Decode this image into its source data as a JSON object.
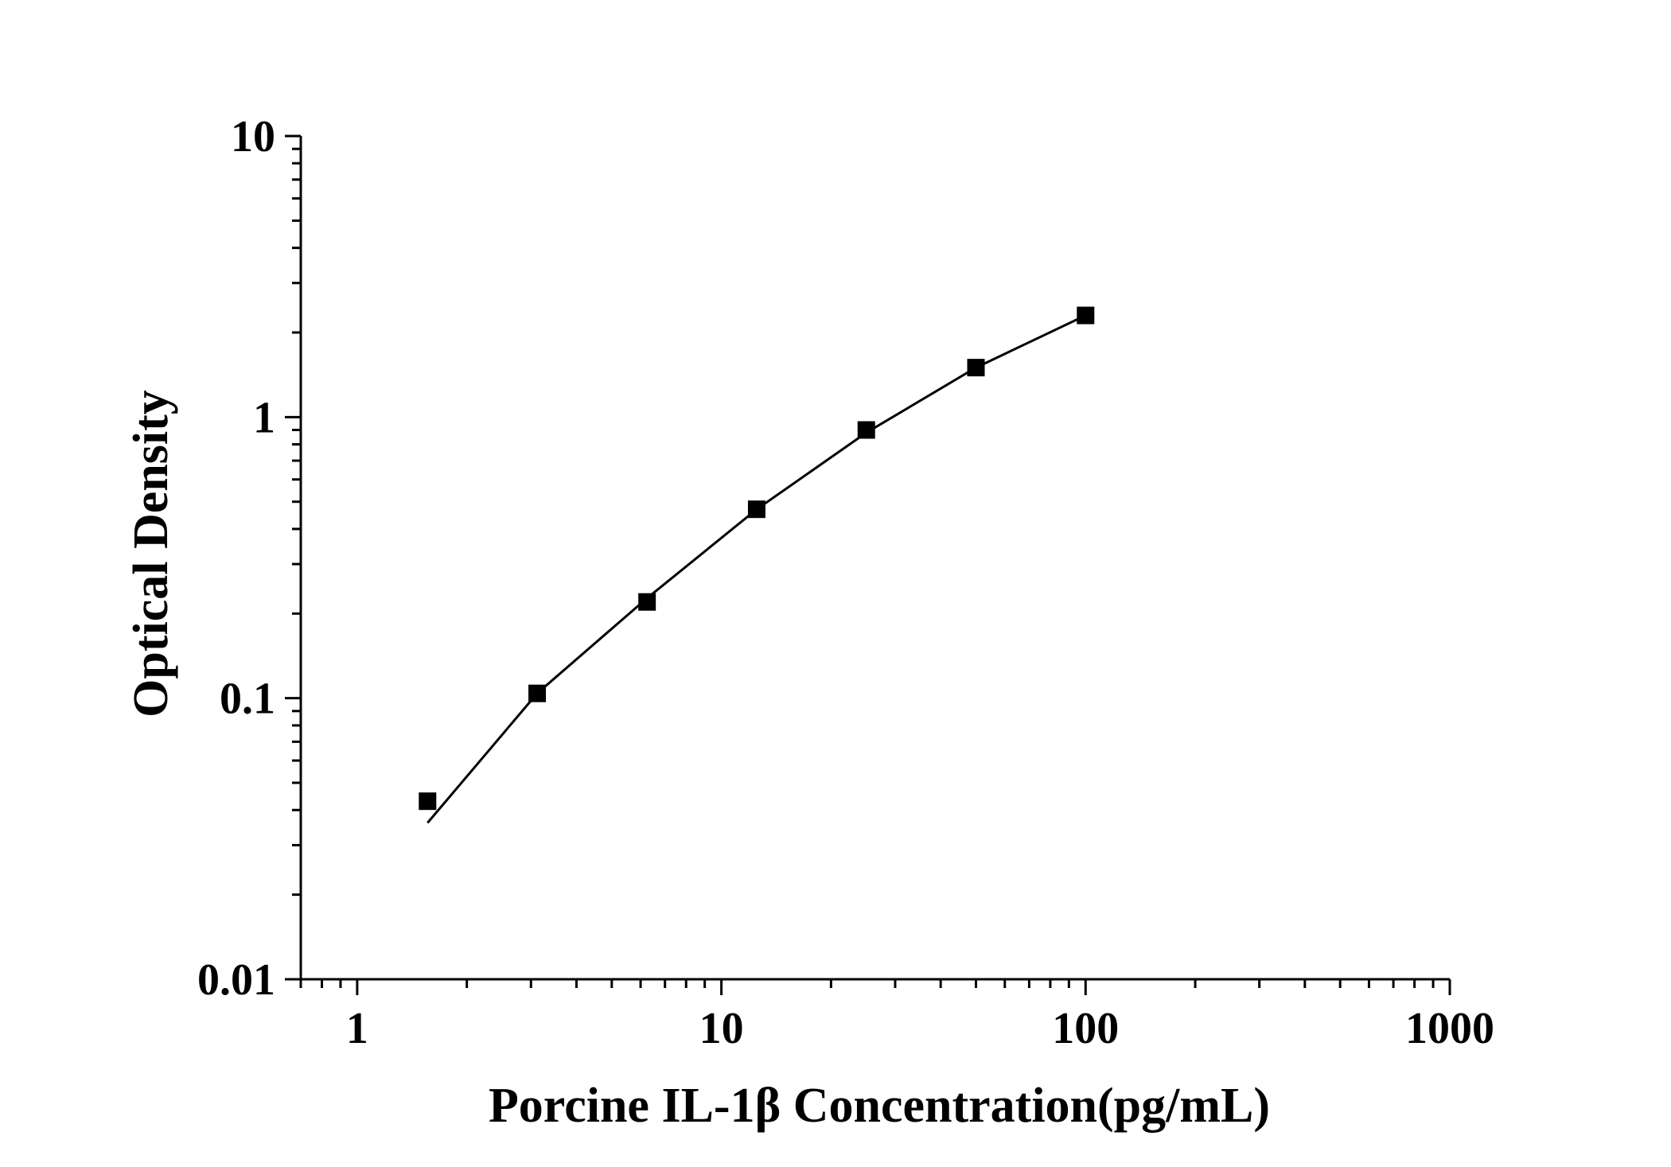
{
  "chart_data": {
    "type": "scatter",
    "x_scale": "log",
    "y_scale": "log",
    "xlim": [
      0.7,
      1000
    ],
    "ylim": [
      0.01,
      10
    ],
    "xlabel": "Porcine IL-1β Concentration(pg/mL)",
    "ylabel": "Optical Density",
    "x_ticks": [
      {
        "value": 1,
        "label": "1"
      },
      {
        "value": 10,
        "label": "10"
      },
      {
        "value": 100,
        "label": "100"
      },
      {
        "value": 1000,
        "label": "1000"
      }
    ],
    "y_ticks": [
      {
        "value": 0.01,
        "label": "0.01"
      },
      {
        "value": 0.1,
        "label": "0.1"
      },
      {
        "value": 1,
        "label": "1"
      },
      {
        "value": 10,
        "label": "10"
      }
    ],
    "grid": false,
    "legend": "none",
    "series": [
      {
        "marker": "square",
        "color": "#000000",
        "points": [
          {
            "x": 1.56,
            "y": 0.043
          },
          {
            "x": 3.12,
            "y": 0.104
          },
          {
            "x": 6.25,
            "y": 0.22
          },
          {
            "x": 12.5,
            "y": 0.47
          },
          {
            "x": 25,
            "y": 0.9
          },
          {
            "x": 50,
            "y": 1.5
          },
          {
            "x": 100,
            "y": 2.3
          }
        ]
      }
    ],
    "fit_curve": {
      "color": "#000000",
      "points": [
        {
          "x": 1.56,
          "y": 0.036
        },
        {
          "x": 3.12,
          "y": 0.104
        },
        {
          "x": 6.25,
          "y": 0.227
        },
        {
          "x": 12.5,
          "y": 0.47
        },
        {
          "x": 25,
          "y": 0.88
        },
        {
          "x": 50,
          "y": 1.5
        },
        {
          "x": 100,
          "y": 2.3
        }
      ]
    }
  }
}
